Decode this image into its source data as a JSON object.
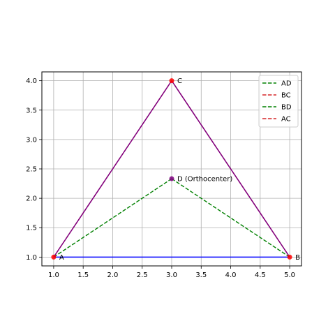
{
  "chart_data": {
    "type": "line",
    "title": "",
    "xlabel": "",
    "ylabel": "",
    "xlim": [
      0.8,
      5.2
    ],
    "ylim": [
      0.85,
      4.15
    ],
    "grid": true,
    "x_ticks": [
      1.0,
      1.5,
      2.0,
      2.5,
      3.0,
      3.5,
      4.0,
      4.5,
      5.0
    ],
    "y_ticks": [
      1.0,
      1.5,
      2.0,
      2.5,
      3.0,
      3.5,
      4.0
    ],
    "x_tick_labels": [
      "1.0",
      "1.5",
      "2.0",
      "2.5",
      "3.0",
      "3.5",
      "4.0",
      "4.5",
      "5.0"
    ],
    "y_tick_labels": [
      "1.0",
      "1.5",
      "2.0",
      "2.5",
      "3.0",
      "3.5",
      "4.0"
    ],
    "points": [
      {
        "label": "A",
        "x": 1.0,
        "y": 1.0,
        "color": "#ff0000"
      },
      {
        "label": "B",
        "x": 5.0,
        "y": 1.0,
        "color": "#ff0000"
      },
      {
        "label": "C",
        "x": 3.0,
        "y": 4.0,
        "color": "#ff0000"
      },
      {
        "label": "D (Orthocenter)",
        "x": 3.0,
        "y": 2.3333,
        "color": "#800080"
      }
    ],
    "sides": [
      {
        "from": "A",
        "to": "B",
        "color": "#0000ff",
        "style": "solid"
      },
      {
        "from": "A",
        "to": "C",
        "color": "#800080",
        "style": "solid"
      },
      {
        "from": "B",
        "to": "C",
        "color": "#800080",
        "style": "solid"
      }
    ],
    "series": [
      {
        "name": "AD",
        "x": [
          1.0,
          3.0
        ],
        "y": [
          1.0,
          2.3333
        ],
        "color": "#008000",
        "style": "dashed"
      },
      {
        "name": "BC",
        "x": [
          5.0,
          3.0
        ],
        "y": [
          1.0,
          4.0
        ],
        "color": "#d62728",
        "style": "dashed"
      },
      {
        "name": "BD",
        "x": [
          5.0,
          3.0
        ],
        "y": [
          1.0,
          2.3333
        ],
        "color": "#008000",
        "style": "dashed"
      },
      {
        "name": "AC",
        "x": [
          1.0,
          3.0
        ],
        "y": [
          1.0,
          4.0
        ],
        "color": "#d62728",
        "style": "dashed"
      }
    ],
    "legend_position": "top-right"
  }
}
